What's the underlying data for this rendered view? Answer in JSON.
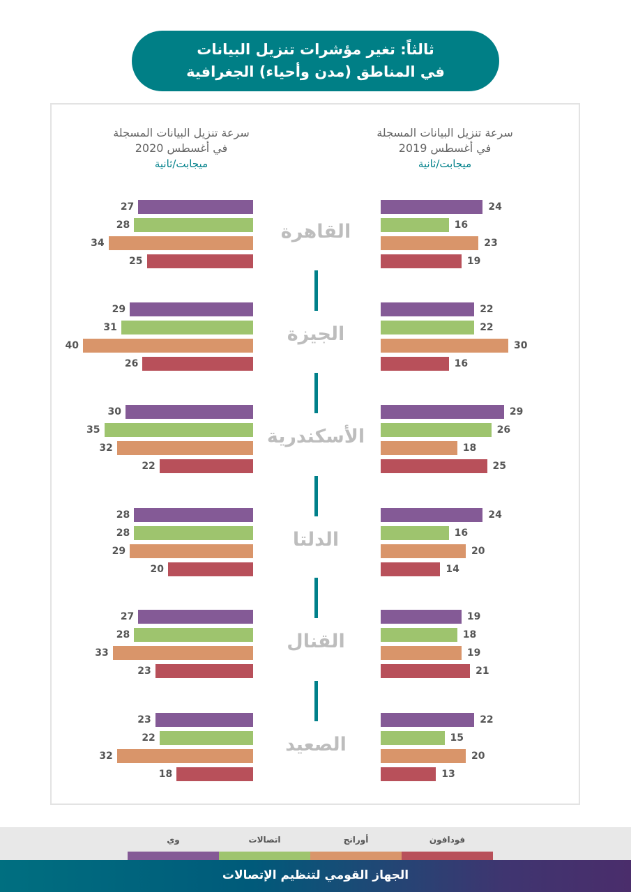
{
  "title": {
    "line1": "ثالثاً: تغير مؤشرات تنزيل البيانات",
    "line2": "في المناطق (مدن وأحياء) الجغرافية"
  },
  "chart_data": {
    "type": "bar",
    "orientation": "horizontal",
    "categories": [
      "القاهرة",
      "الجيزة",
      "الأسكندرية",
      "الدلتا",
      "القنال",
      "الصعيد"
    ],
    "panels": [
      {
        "id": "2020",
        "title_line1": "سرعة تنزيل البيانات المسجلة",
        "title_line2": "في أغسطس 2020",
        "unit": "ميجابت/ثانية",
        "series": [
          {
            "name": "وي",
            "color": "#845a96",
            "values": [
              27,
              29,
              30,
              28,
              27,
              23
            ]
          },
          {
            "name": "اتصالات",
            "color": "#9ec46e",
            "values": [
              28,
              31,
              35,
              28,
              28,
              22
            ]
          },
          {
            "name": "أورانج",
            "color": "#d9956a",
            "values": [
              34,
              40,
              32,
              29,
              33,
              32
            ]
          },
          {
            "name": "فودافون",
            "color": "#b8505a",
            "values": [
              25,
              26,
              22,
              20,
              23,
              18
            ]
          }
        ]
      },
      {
        "id": "2019",
        "title_line1": "سرعة تنزيل البيانات المسجلة",
        "title_line2": "في أغسطس 2019",
        "unit": "ميجابت/ثانية",
        "series": [
          {
            "name": "وي",
            "color": "#845a96",
            "values": [
              24,
              22,
              29,
              24,
              19,
              22
            ]
          },
          {
            "name": "اتصالات",
            "color": "#9ec46e",
            "values": [
              16,
              22,
              26,
              16,
              18,
              15
            ]
          },
          {
            "name": "أورانج",
            "color": "#d9956a",
            "values": [
              23,
              30,
              18,
              20,
              19,
              20
            ]
          },
          {
            "name": "فودافون",
            "color": "#b8505a",
            "values": [
              19,
              16,
              25,
              14,
              21,
              13
            ]
          }
        ]
      }
    ],
    "legend": [
      {
        "name": "وي",
        "color": "#845a96"
      },
      {
        "name": "اتصالات",
        "color": "#9ec46e"
      },
      {
        "name": "أورانج",
        "color": "#d9956a"
      },
      {
        "name": "فودافون",
        "color": "#b8505a"
      }
    ],
    "legend_position": "bottom"
  },
  "footer": "الجهاز القومي لتنظيم الإتصالات"
}
